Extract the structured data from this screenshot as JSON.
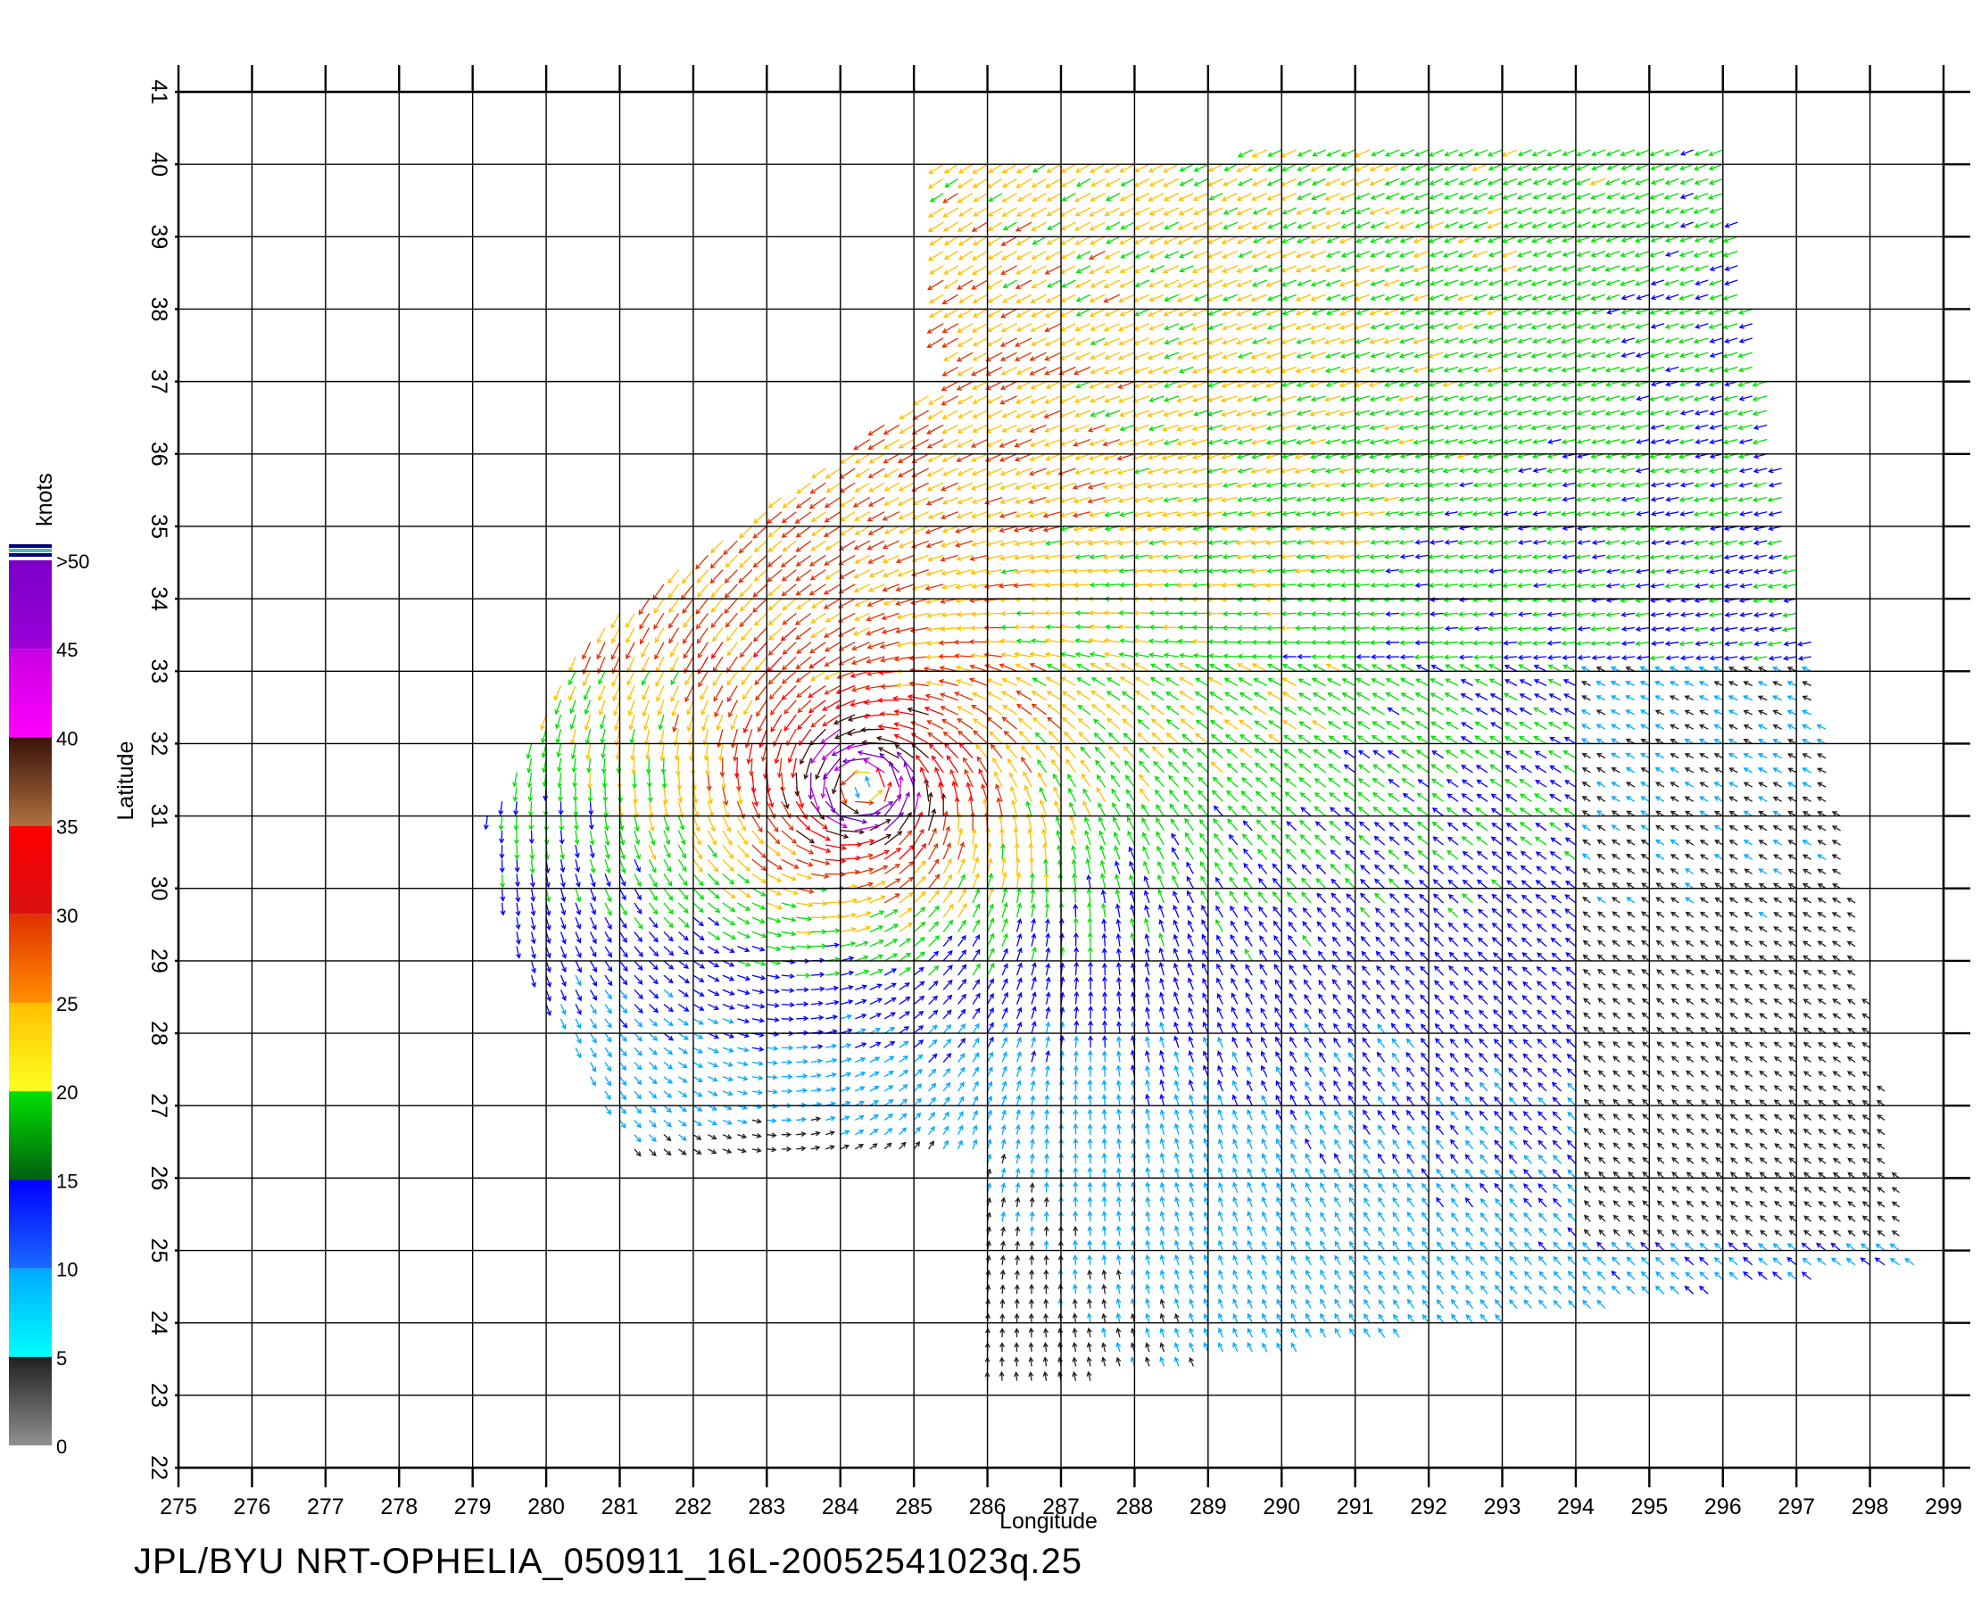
{
  "footer_text": "JPL/BYU  NRT-OPHELIA_050911_16L-20052541023q.25",
  "chart_data": {
    "type": "vector-field",
    "xlabel": "Longitude",
    "ylabel": "Latitude",
    "xlim": [
      275,
      299
    ],
    "ylim": [
      22,
      41
    ],
    "x_ticks": [
      "275",
      "276",
      "277",
      "278",
      "279",
      "280",
      "281",
      "282",
      "283",
      "284",
      "285",
      "286",
      "287",
      "288",
      "289",
      "290",
      "291",
      "292",
      "293",
      "294",
      "295",
      "296",
      "297",
      "298",
      "299"
    ],
    "y_ticks": [
      "22",
      "23",
      "24",
      "25",
      "26",
      "27",
      "28",
      "29",
      "30",
      "31",
      "32",
      "33",
      "34",
      "35",
      "36",
      "37",
      "38",
      "39",
      "40",
      "41"
    ],
    "grid": true,
    "colorbar": {
      "title": "knots",
      "labels": [
        ">50",
        "45",
        "40",
        "35",
        "30",
        "25",
        "20",
        "15",
        "10",
        "5",
        "0"
      ],
      "bands": [
        {
          "from": 45,
          "to": 50,
          "top": "#7a00c8",
          "bottom": "#9a00d8"
        },
        {
          "from": 40,
          "to": 45,
          "top": "#c800e0",
          "bottom": "#ff00ff"
        },
        {
          "from": 35,
          "to": 40,
          "top": "#3a1208",
          "bottom": "#b07040"
        },
        {
          "from": 30,
          "to": 35,
          "top": "#ff0000",
          "bottom": "#d81010"
        },
        {
          "from": 25,
          "to": 30,
          "top": "#e03000",
          "bottom": "#ff9000"
        },
        {
          "from": 20,
          "to": 25,
          "top": "#ffc000",
          "bottom": "#ffff20"
        },
        {
          "from": 15,
          "to": 20,
          "top": "#00e000",
          "bottom": "#006010"
        },
        {
          "from": 10,
          "to": 15,
          "top": "#0000ff",
          "bottom": "#1a6aff"
        },
        {
          "from": 5,
          "to": 10,
          "top": "#00a8ff",
          "bottom": "#00ffff"
        },
        {
          "from": 0,
          "to": 5,
          "top": "#202020",
          "bottom": "#909090"
        }
      ]
    },
    "storm_center": {
      "lon": 284.3,
      "lat": 31.4
    },
    "swath_corners": [
      {
        "lon": 285.3,
        "lat": 40.0
      },
      {
        "lon": 296.0,
        "lat": 40.5
      },
      {
        "lon": 297.3,
        "lat": 33.0
      },
      {
        "lon": 298.6,
        "lat": 24.8
      },
      {
        "lon": 286.0,
        "lat": 23.0
      }
    ]
  }
}
